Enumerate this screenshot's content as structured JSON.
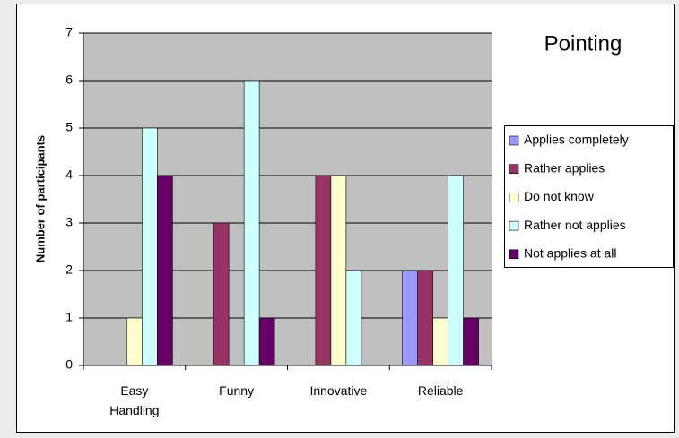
{
  "chart_data": {
    "type": "bar",
    "title": "Pointing",
    "ylabel": "Number of participants",
    "categories": [
      "Easy Handling",
      "Funny",
      "Innovative",
      "Reliable"
    ],
    "series": [
      {
        "name": "Applies completely",
        "color": "#9999ff",
        "values": [
          0,
          0,
          0,
          2
        ]
      },
      {
        "name": "Rather applies",
        "color": "#993366",
        "values": [
          0,
          3,
          4,
          2
        ]
      },
      {
        "name": "Do not know",
        "color": "#ffffcc",
        "values": [
          1,
          0,
          4,
          1
        ]
      },
      {
        "name": "Rather not applies",
        "color": "#ccffff",
        "values": [
          5,
          6,
          2,
          4
        ]
      },
      {
        "name": "Not applies at all",
        "color": "#660066",
        "values": [
          4,
          1,
          0,
          1
        ]
      }
    ],
    "ylim": [
      0,
      7
    ],
    "yticks": [
      0,
      1,
      2,
      3,
      4,
      5,
      6,
      7
    ],
    "grid": true,
    "plot_background": "#c0c0c0",
    "legend": "right"
  }
}
